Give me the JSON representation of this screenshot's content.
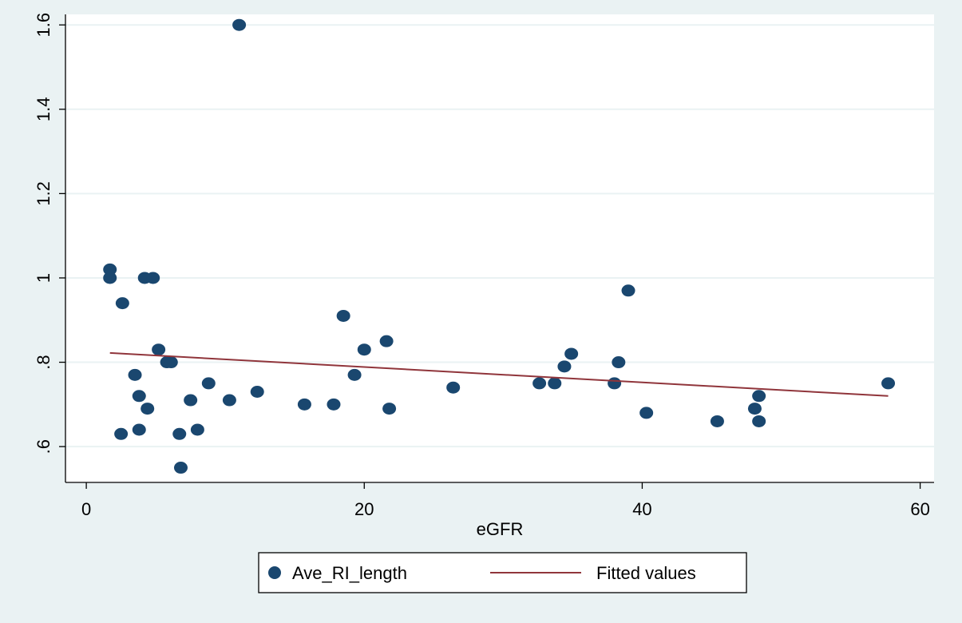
{
  "chart_data": {
    "type": "scatter",
    "title": "",
    "xlabel": "eGFR",
    "ylabel": "",
    "xlim": [
      -1.5,
      61
    ],
    "ylim": [
      0.515,
      1.625
    ],
    "xticks": [
      0,
      20,
      40,
      60
    ],
    "xtick_labels": [
      "0",
      "20",
      "40",
      "60"
    ],
    "yticks": [
      0.6,
      0.8,
      1.0,
      1.2,
      1.4,
      1.6
    ],
    "ytick_labels": [
      ".6",
      ".8",
      "1",
      "1.2",
      "1.4",
      "1.6"
    ],
    "grid": true,
    "legend_position": "bottom",
    "colors": {
      "points": "#1a476f",
      "fit": "#90353b"
    },
    "series": [
      {
        "name": "Ave_RI_length",
        "kind": "scatter",
        "points": [
          [
            1.7,
            1.02
          ],
          [
            1.7,
            1.0
          ],
          [
            2.6,
            0.94
          ],
          [
            2.5,
            0.63
          ],
          [
            3.5,
            0.77
          ],
          [
            3.8,
            0.72
          ],
          [
            3.8,
            0.64
          ],
          [
            4.2,
            1.0
          ],
          [
            4.4,
            0.69
          ],
          [
            4.8,
            1.0
          ],
          [
            5.2,
            0.83
          ],
          [
            5.8,
            0.8
          ],
          [
            6.1,
            0.8
          ],
          [
            6.7,
            0.63
          ],
          [
            6.8,
            0.55
          ],
          [
            7.5,
            0.71
          ],
          [
            8.0,
            0.64
          ],
          [
            8.8,
            0.75
          ],
          [
            10.3,
            0.71
          ],
          [
            11.0,
            1.6
          ],
          [
            12.3,
            0.73
          ],
          [
            15.7,
            0.7
          ],
          [
            17.8,
            0.7
          ],
          [
            18.5,
            0.91
          ],
          [
            19.3,
            0.77
          ],
          [
            20.0,
            0.83
          ],
          [
            21.6,
            0.85
          ],
          [
            21.8,
            0.69
          ],
          [
            26.4,
            0.74
          ],
          [
            32.6,
            0.75
          ],
          [
            33.7,
            0.75
          ],
          [
            34.4,
            0.79
          ],
          [
            34.9,
            0.82
          ],
          [
            38.0,
            0.75
          ],
          [
            38.3,
            0.8
          ],
          [
            39.0,
            0.97
          ],
          [
            40.3,
            0.68
          ],
          [
            45.4,
            0.66
          ],
          [
            48.1,
            0.69
          ],
          [
            48.4,
            0.72
          ],
          [
            48.4,
            0.66
          ],
          [
            57.7,
            0.75
          ]
        ]
      },
      {
        "name": "Fitted values",
        "kind": "line",
        "points": [
          [
            1.7,
            0.822
          ],
          [
            57.7,
            0.72
          ]
        ]
      }
    ]
  }
}
